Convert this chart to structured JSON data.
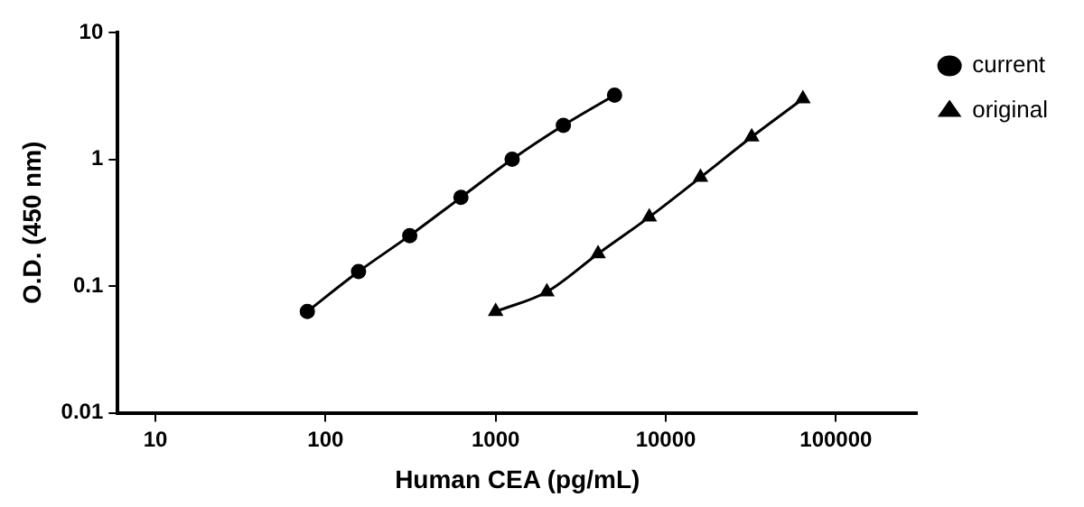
{
  "chart_data": {
    "type": "line",
    "xlabel": "Human CEA (pg/mL)",
    "ylabel": "O.D. (450 nm)",
    "log": "xy",
    "grid": false,
    "legend": "top right",
    "line_style": "solid",
    "xlim": [
      6,
      300000
    ],
    "xticks": [
      10,
      100,
      1000,
      10000,
      100000
    ],
    "ylim": [
      0.01,
      10
    ],
    "yticks": [
      0.01,
      0.1,
      1,
      10
    ],
    "series": [
      {
        "name": "current",
        "color": "#000000",
        "marker": "circle",
        "x": [
          78.125,
          156.25,
          312.5,
          625,
          1250,
          2500,
          5000
        ],
        "values": [
          0.063,
          0.13,
          0.25,
          0.5,
          1.0,
          1.85,
          3.2
        ]
      },
      {
        "name": "original",
        "color": "#000000",
        "marker": "triangle",
        "x": [
          1000,
          2000,
          4000,
          8000,
          16000,
          32000,
          64000
        ],
        "values": [
          0.063,
          0.09,
          0.18,
          0.35,
          0.72,
          1.5,
          3.0
        ]
      }
    ]
  }
}
